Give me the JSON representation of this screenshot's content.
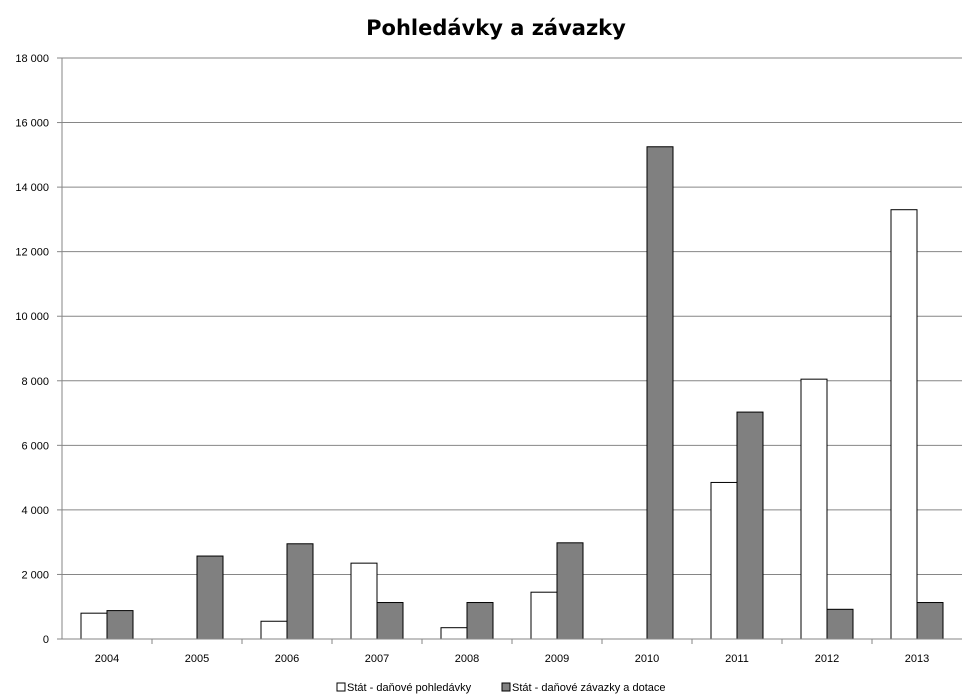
{
  "chart_data": {
    "type": "bar",
    "title": "Pohledávky a závazky",
    "xlabel": "",
    "ylabel": "",
    "categories": [
      "2004",
      "2005",
      "2006",
      "2007",
      "2008",
      "2009",
      "2010",
      "2011",
      "2012",
      "2013"
    ],
    "series": [
      {
        "name": "Stát - daňové pohledávky",
        "color": "#ffffff",
        "values": [
          800,
          null,
          550,
          2350,
          350,
          1450,
          null,
          4850,
          8050,
          13300
        ]
      },
      {
        "name": "Stát - daňové závazky a dotace",
        "color": "#808080",
        "values": [
          880,
          2570,
          2950,
          1130,
          1130,
          2980,
          15250,
          7030,
          920,
          1130
        ]
      }
    ],
    "ylim": [
      0,
      18000
    ],
    "y_ticks": [
      0,
      2000,
      4000,
      6000,
      8000,
      10000,
      12000,
      14000,
      16000,
      18000
    ],
    "y_tick_labels": [
      "0",
      "2 000",
      "4 000",
      "6 000",
      "8 000",
      "10 000",
      "12 000",
      "14 000",
      "16 000",
      "18 000"
    ],
    "grid": true,
    "legend_position": "bottom"
  }
}
